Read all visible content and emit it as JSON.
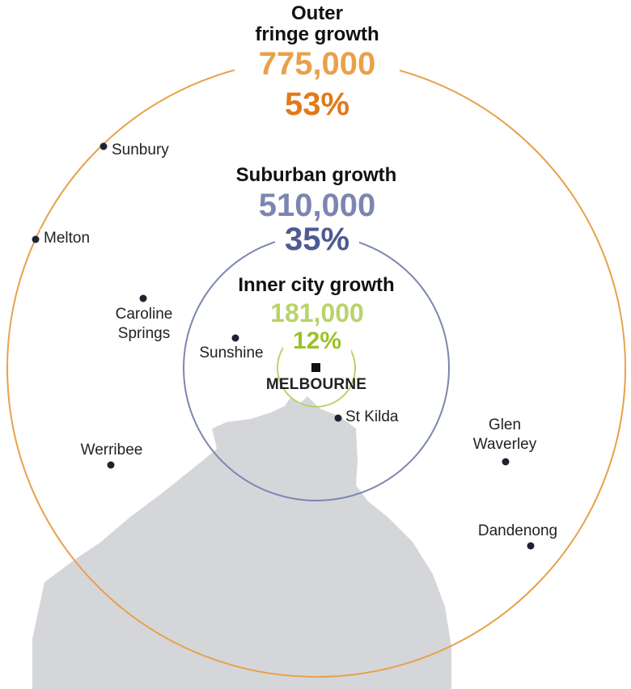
{
  "colors": {
    "outer": "#e8a14a",
    "outer_pct": "#e07a1a",
    "suburban": "#7d86b0",
    "suburban_pct": "#4f5a92",
    "inner": "#b9d36a",
    "inner_pct": "#9bc229",
    "land": "#d5d6d9",
    "dot": "#1f2233"
  },
  "outer": {
    "title_line1": "Outer",
    "title_line2": "fringe growth",
    "number": "775,000",
    "percent": "53%"
  },
  "suburban": {
    "title": "Suburban growth",
    "number": "510,000",
    "percent": "35%"
  },
  "inner": {
    "title": "Inner city growth",
    "number": "181,000",
    "percent": "12%"
  },
  "center_label": "MELBOURNE",
  "places": {
    "sunbury": "Sunbury",
    "melton": "Melton",
    "caroline_line1": "Caroline",
    "caroline_line2": "Springs",
    "sunshine": "Sunshine",
    "st_kilda": "St Kilda",
    "werribee": "Werribee",
    "glen_line1": "Glen",
    "glen_line2": "Waverley",
    "dandenong": "Dandenong"
  }
}
